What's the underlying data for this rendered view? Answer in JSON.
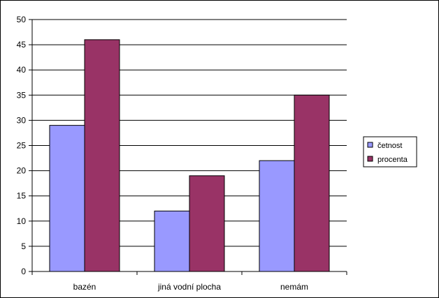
{
  "chart_data": {
    "type": "bar",
    "categories": [
      "bazén",
      "jiná vodní plocha",
      "nemám"
    ],
    "series": [
      {
        "name": "četnost",
        "values": [
          29,
          12,
          22
        ],
        "color": "#9999ff"
      },
      {
        "name": "procenta",
        "values": [
          46,
          19,
          35
        ],
        "color": "#993366"
      }
    ],
    "ylim": [
      0,
      50
    ],
    "yticks": [
      "0",
      "5",
      "10",
      "15",
      "20",
      "25",
      "30",
      "35",
      "40",
      "45",
      "50"
    ],
    "grid": true,
    "legend_position": "right"
  }
}
